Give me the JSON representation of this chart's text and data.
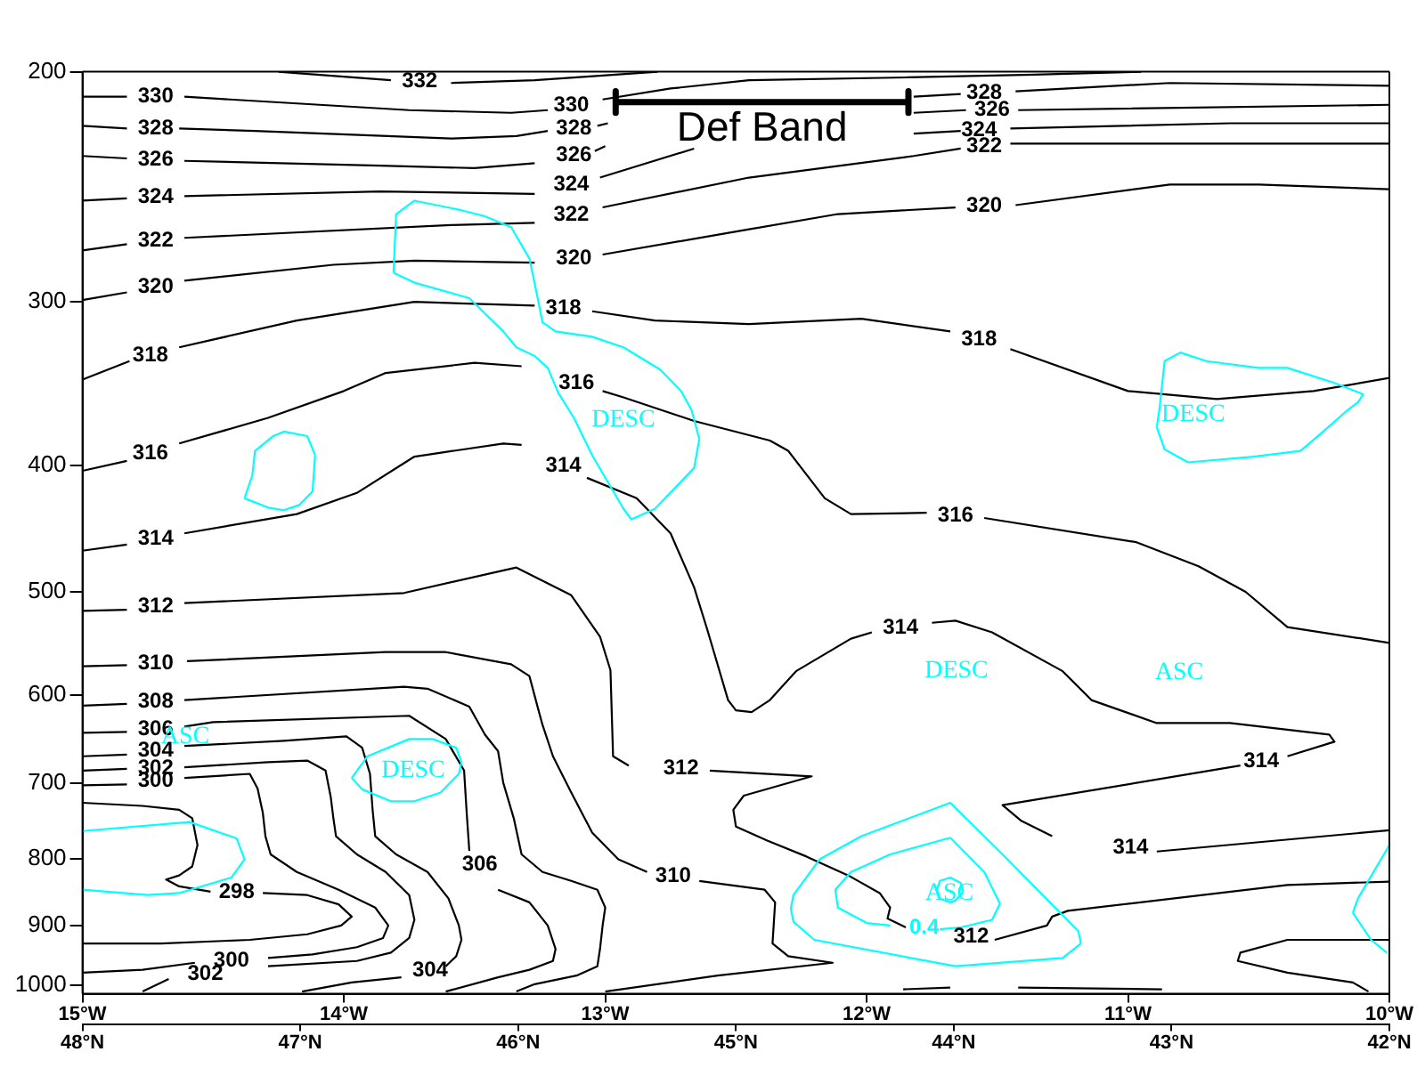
{
  "chart_data": {
    "type": "line",
    "log": "y",
    "xlim": [
      -15,
      -10
    ],
    "xticks": [
      {
        "value": -15,
        "label": "15°W"
      },
      {
        "value": -14,
        "label": "14°W"
      },
      {
        "value": -13,
        "label": "13°W"
      },
      {
        "value": -12,
        "label": "12°W"
      },
      {
        "value": -11,
        "label": "11°W"
      },
      {
        "value": -10,
        "label": "10°W"
      }
    ],
    "x2lim": [
      48,
      42
    ],
    "x2ticks": [
      {
        "value": 48,
        "label": "48°N"
      },
      {
        "value": 47,
        "label": "47°N"
      },
      {
        "value": 46,
        "label": "46°N"
      },
      {
        "value": 45,
        "label": "45°N"
      },
      {
        "value": 44,
        "label": "44°N"
      },
      {
        "value": 43,
        "label": "43°N"
      },
      {
        "value": 42,
        "label": "42°N"
      }
    ],
    "ylim": [
      1015,
      200
    ],
    "yticks": [
      200,
      300,
      400,
      500,
      600,
      700,
      800,
      900,
      1000
    ],
    "series": [
      {
        "name": "332",
        "color": "#000000",
        "x": [
          -14.25,
          -13.82,
          -13.71,
          -13.59,
          -13.27,
          -12.8
        ],
        "values": [
          200,
          203,
          null,
          204,
          203,
          200
        ]
      },
      {
        "name": "330",
        "color": "#000000",
        "x": [
          -15,
          -14.83,
          -14.72,
          -14.61,
          -13.75,
          -13.36,
          -13.22,
          -13.13,
          -13.01,
          -12.75,
          -12.45,
          -11.84,
          -11.36,
          -10.95
        ],
        "values": [
          209,
          209,
          null,
          209,
          214,
          215,
          214,
          null,
          210,
          206,
          203,
          202,
          201,
          200
        ]
      },
      {
        "name": "328",
        "color": "#000000",
        "x": [
          -15,
          -14.83,
          -14.72,
          -14.63,
          -14.34,
          -13.59,
          -13.34,
          -13.22,
          -13.12,
          -13.03,
          -12.99
        ],
        "values": [
          220,
          221,
          null,
          221,
          222,
          225,
          224,
          222,
          null,
          220,
          219
        ]
      },
      {
        "name": "328",
        "color": "#000000",
        "x": [
          -11.82,
          -11.64,
          -11.55,
          -11.43,
          -10.84,
          -10
        ],
        "values": [
          209,
          208,
          null,
          207,
          204,
          205
        ]
      },
      {
        "name": "326",
        "color": "#000000",
        "x": [
          -15,
          -14.83,
          -14.72,
          -14.61,
          -13.86,
          -13.5,
          -13.27,
          -13.12,
          -13.04,
          -13.0
        ],
        "values": [
          232,
          233,
          null,
          234,
          236,
          237,
          235,
          null,
          230,
          228
        ]
      },
      {
        "name": "326",
        "color": "#000000",
        "x": [
          -11.82,
          -11.62,
          -11.52,
          -11.42,
          -10
        ],
        "values": [
          215,
          214,
          null,
          214,
          212
        ]
      },
      {
        "name": "324",
        "color": "#000000",
        "x": [
          -15,
          -14.83,
          -14.72,
          -14.61,
          -13.86,
          -13.27,
          -13.13,
          -13.02,
          -12.66
        ],
        "values": [
          251,
          250,
          null,
          249,
          247,
          248,
          null,
          241,
          229
        ]
      },
      {
        "name": "324",
        "color": "#000000",
        "x": [
          -11.82,
          -11.64,
          -11.57,
          -11.45,
          -10.61,
          -10
        ],
        "values": [
          223,
          222,
          null,
          221,
          219,
          219
        ]
      },
      {
        "name": "322",
        "color": "#000000",
        "x": [
          -15,
          -14.83,
          -14.72,
          -14.61,
          -13.59,
          -13.27,
          -13.13,
          -13.01,
          -12.45,
          -11.82,
          -11.64,
          -11.55,
          -11.45,
          -10
        ],
        "values": [
          274,
          271,
          null,
          268,
          262,
          261,
          null,
          254,
          241,
          232,
          229,
          null,
          227,
          227
        ]
      },
      {
        "name": "320",
        "color": "#000000",
        "x": [
          -15,
          -14.83,
          -14.72,
          -14.61,
          -14.04,
          -13.73,
          -13.27,
          -13.12,
          -13.01,
          -12.45,
          -12.11,
          -11.66,
          -11.55,
          -11.43,
          -10.84,
          -10.5,
          -10
        ],
        "values": [
          299,
          295,
          null,
          289,
          281,
          279,
          280,
          null,
          276,
          264,
          257,
          254,
          null,
          253,
          244,
          244,
          246
        ]
      },
      {
        "name": "318",
        "color": "#000000",
        "x": [
          -15,
          -14.82,
          -14.74,
          -14.63,
          -14.18,
          -13.73,
          -13.27,
          -13.16,
          -13.05,
          -12.81,
          -12.45,
          -12.02,
          -11.68,
          -11.57,
          -11.45,
          -11.0,
          -10.66,
          -10.29,
          -10
        ],
        "values": [
          344,
          333,
          null,
          325,
          310,
          300,
          302,
          null,
          305,
          310,
          312,
          309,
          316,
          null,
          326,
          351,
          356,
          351,
          343
        ]
      },
      {
        "name": "316",
        "color": "#000000",
        "x": [
          -15,
          -14.83,
          -14.74,
          -14.63,
          -14.29,
          -14.0,
          -13.84,
          -13.5,
          -13.32,
          -13.11,
          -13.01,
          -12.93,
          -12.66,
          -12.37,
          -12.3,
          -12.16,
          -12.06,
          -11.77,
          -11.66,
          -11.55,
          -10.97,
          -10.73,
          -10.55,
          -10.39,
          -10
        ],
        "values": [
          404,
          397,
          null,
          385,
          368,
          351,
          340,
          334,
          336,
          null,
          351,
          355,
          370,
          383,
          390,
          424,
          436,
          435,
          null,
          439,
          458,
          478,
          500,
          532,
          547
        ]
      },
      {
        "name": "314",
        "color": "#000000",
        "x": [
          -15,
          -14.83,
          -14.72,
          -14.61,
          -14.18,
          -13.95,
          -13.73,
          -13.39,
          -13.32,
          -13.16,
          -13.07,
          -12.88,
          -12.75,
          -12.66,
          -12.61,
          -12.53,
          -12.5,
          -12.44,
          -12.37,
          -12.27,
          -12.06,
          -11.98,
          -11.87,
          -11.75,
          -11.66,
          -11.52,
          -11.25,
          -11.14,
          -10.89,
          -10.61,
          -10.23,
          -10.21,
          -10.39,
          -10.49,
          -10.57,
          -11.48,
          -11.41,
          -11.29,
          -10.99,
          -10.89,
          -10
        ],
        "values": [
          465,
          460,
          null,
          451,
          436,
          420,
          394,
          385,
          386,
          null,
          409,
          424,
          451,
          496,
          534,
          605,
          616,
          618,
          605,
          575,
          543,
          537,
          null,
          528,
          526,
          537,
          575,
          605,
          630,
          630,
          643,
          651,
          668,
          null,
          679,
          728,
          748,
          769,
          null,
          790,
          761
        ]
      },
      {
        "name": "312",
        "color": "#000000",
        "x": [
          -15,
          -14.83,
          -14.72,
          -14.61,
          -13.77,
          -13.34,
          -13.13,
          -13.02,
          -12.98,
          -12.97,
          -12.91,
          -12.71,
          -12.6,
          -12.21,
          -12.47,
          -12.51,
          -12.5,
          -12.38,
          -12.23,
          -12.07,
          -11.95,
          -11.91,
          -11.92,
          -11.85,
          -11.6,
          -11.51,
          -11.31,
          -11.29,
          -11.23,
          -10.39,
          -10
        ],
        "values": [
          517,
          516,
          null,
          510,
          501,
          479,
          503,
          541,
          574,
          668,
          679,
          null,
          685,
          692,
          716,
          734,
          756,
          775,
          797,
          824,
          850,
          872,
          889,
          903,
          null,
          923,
          900,
          886,
          877,
          838,
          833
        ]
      },
      {
        "name": "310",
        "color": "#000000",
        "x": [
          -15,
          -14.83,
          -14.72,
          -14.6,
          -13.84,
          -13.61,
          -13.36,
          -13.29,
          -13.26,
          -13.24,
          -13.2,
          -13.13,
          -13.05,
          -12.95,
          -12.84,
          -12.74,
          -12.64,
          -12.39,
          -12.35,
          -12.36,
          -12.3,
          -12.13,
          -12.57,
          -13.0
        ],
        "values": [
          570,
          569,
          null,
          565,
          556,
          556,
          568,
          580,
          611,
          632,
          668,
          712,
          764,
          801,
          819,
          null,
          832,
          845,
          864,
          929,
          950,
          961,
          983,
          1011
        ]
      },
      {
        "name": "308",
        "color": "#000000",
        "x": [
          -15,
          -14.83,
          -14.72,
          -14.61,
          -13.77,
          -13.68,
          -13.52,
          -13.46,
          -13.41,
          -13.39,
          -13.35,
          -13.32,
          -13.24,
          -13.13,
          -13.03,
          -13.0,
          -13.01,
          -13.02,
          -13.03,
          -13.11,
          -13.27,
          -13.34
        ],
        "values": [
          611,
          609,
          null,
          605,
          591,
          593,
          612,
          643,
          662,
          700,
          745,
          794,
          819,
          832,
          845,
          872,
          900,
          938,
          967,
          983,
          998,
          1011
        ]
      },
      {
        "name": "306",
        "color": "#000000",
        "x": [
          -15,
          -14.83,
          -14.72,
          -14.61,
          -14.5,
          -13.75,
          -13.61,
          -13.54,
          -13.53,
          -13.52,
          -13.48,
          -13.41,
          -13.29,
          -13.22,
          -13.19,
          -13.2,
          -13.29,
          -13.41,
          -13.61
        ],
        "values": [
          641,
          640,
          null,
          634,
          629,
          622,
          648,
          685,
          738,
          789,
          null,
          845,
          864,
          900,
          938,
          958,
          973,
          986,
          1011
        ]
      },
      {
        "name": "304",
        "color": "#000000",
        "x": [
          -15,
          -14.83,
          -14.72,
          -14.61,
          -14.23,
          -13.99,
          -13.93,
          -13.9,
          -13.89,
          -13.88,
          -13.8,
          -13.68,
          -13.6,
          -13.56,
          -13.55,
          -13.57,
          -13.61,
          -13.67,
          -13.78,
          -13.97,
          -14.16
        ],
        "values": [
          668,
          666,
          null,
          656,
          650,
          645,
          658,
          689,
          734,
          769,
          794,
          819,
          858,
          900,
          923,
          950,
          967,
          null,
          986,
          995,
          1011
        ]
      },
      {
        "name": "302",
        "color": "#000000",
        "x": [
          -15,
          -14.83,
          -14.72,
          -14.61,
          -14.29,
          -14.14,
          -14.07,
          -14.05,
          -14.04,
          -14.03,
          -13.95,
          -13.84,
          -13.75,
          -13.73,
          -13.75,
          -13.82,
          -13.95,
          -14.29,
          -14.53,
          -14.67,
          -14.77
        ],
        "values": [
          685,
          683,
          null,
          681,
          675,
          673,
          685,
          718,
          745,
          769,
          794,
          819,
          853,
          891,
          920,
          944,
          958,
          967,
          null,
          989,
          1011
        ]
      },
      {
        "name": "300",
        "color": "#000000",
        "x": [
          -15,
          -14.83,
          -14.72,
          -14.61,
          -14.36,
          -14.33,
          -14.31,
          -14.3,
          -14.28,
          -14.18,
          -14.02,
          -13.88,
          -13.83,
          -13.85,
          -13.95,
          -14.12,
          -14.29,
          -14.43,
          -14.57,
          -14.77,
          -15
        ],
        "values": [
          703,
          702,
          null,
          694,
          689,
          707,
          738,
          769,
          794,
          819,
          845,
          872,
          900,
          920,
          935,
          947,
          953,
          null,
          961,
          973,
          978
        ]
      },
      {
        "name": "298",
        "color": "#000000",
        "x": [
          -15,
          -14.77,
          -14.63,
          -14.58,
          -14.56,
          -14.58,
          -14.63,
          -14.68,
          -14.63,
          -14.51,
          -14.41,
          -14.31,
          -14.14,
          -14.02,
          -13.97,
          -14.01,
          -14.14,
          -14.36,
          -14.7,
          -15
        ],
        "values": [
          725,
          729,
          734,
          745,
          781,
          811,
          824,
          830,
          840,
          848,
          null,
          850,
          853,
          867,
          886,
          900,
          914,
          923,
          929,
          929
        ]
      },
      {
        "color": "#000000",
        "x": [
          -10,
          -10.39,
          -10.57,
          -10.58,
          -10.39,
          -10.14,
          -10.08
        ],
        "values": [
          923,
          923,
          944,
          958,
          978,
          995,
          1011
        ]
      },
      {
        "color": "#000000",
        "x": [
          -11.86,
          -11.68
        ],
        "values": [
          1007,
          1004
        ]
      },
      {
        "color": "#000000",
        "x": [
          -11.42,
          -10.87
        ],
        "values": [
          1004,
          1007
        ]
      },
      {
        "color": "#00ffff",
        "x": [
          -13.81,
          -13.8,
          -13.73,
          -13.56,
          -13.46,
          -13.36,
          -13.29,
          -13.26,
          -13.24,
          -13.19,
          -13.05,
          -12.93,
          -12.79,
          -12.71,
          -12.67,
          -12.64
        ],
        "values": [
          285,
          257,
          251,
          255,
          258,
          263,
          278,
          297,
          311,
          316,
          319,
          325,
          338,
          351,
          363,
          382
        ]
      },
      {
        "color": "#00ffff",
        "x": [
          -13.81,
          -13.73,
          -13.52,
          -13.39,
          -13.34,
          -13.27,
          -13.22,
          -13.18,
          -13.12,
          -13.05,
          -12.93,
          -12.9,
          -12.81,
          -12.66,
          -12.64
        ],
        "values": [
          285,
          290,
          298,
          316,
          325,
          330,
          337,
          352,
          368,
          393,
          432,
          440,
          432,
          402,
          382
        ]
      },
      {
        "color": "#00ffff",
        "x": [
          -14.38,
          -14.35,
          -14.34,
          -14.27,
          -14.23,
          -14.14,
          -14.11
        ],
        "values": [
          424,
          407,
          390,
          380,
          377,
          380,
          393
        ]
      },
      {
        "color": "#00ffff",
        "x": [
          -14.38,
          -14.29,
          -14.23,
          -14.17,
          -14.12,
          -14.11
        ],
        "values": [
          424,
          431,
          433,
          429,
          419,
          393
        ]
      },
      {
        "color": "#00ffff",
        "x": [
          -10.89,
          -10.88,
          -10.86,
          -10.8,
          -10.7,
          -10.5,
          -10.39,
          -10.21,
          -10.1
        ],
        "values": [
          374,
          363,
          333,
          328,
          333,
          337,
          337,
          346,
          353
        ]
      },
      {
        "color": "#00ffff",
        "x": [
          -10.89,
          -10.86,
          -10.77,
          -10.52,
          -10.34,
          -10.26,
          -10.16,
          -10.12,
          -10.1
        ],
        "values": [
          374,
          389,
          398,
          394,
          390,
          378,
          363,
          358,
          353
        ]
      },
      {
        "color": "#00ffff",
        "x": [
          -15,
          -14.59,
          -14.41,
          -14.38,
          -14.43,
          -14.63,
          -14.75,
          -15
        ],
        "values": [
          762,
          750,
          772,
          801,
          827,
          850,
          853,
          845
        ]
      },
      {
        "color": "#00ffff",
        "x": [
          -13.97,
          -13.91,
          -13.75,
          -13.66,
          -13.57,
          -13.55
        ],
        "values": [
          694,
          668,
          648,
          648,
          658,
          675
        ]
      },
      {
        "color": "#00ffff",
        "x": [
          -13.97,
          -13.93,
          -13.82,
          -13.73,
          -13.63,
          -13.56,
          -13.55
        ],
        "values": [
          694,
          708,
          723,
          723,
          712,
          689,
          675
        ]
      },
      {
        "color": "#00ffff",
        "x": [
          -12.29,
          -12.28,
          -12.18,
          -12.02,
          -11.68,
          -11.48,
          -11.19,
          -11.18
        ],
        "values": [
          874,
          853,
          801,
          769,
          725,
          794,
          909,
          929
        ]
      },
      {
        "color": "#00ffff",
        "x": [
          -12.29,
          -12.28,
          -12.2,
          -11.66,
          -11.25,
          -11.18
        ],
        "values": [
          874,
          894,
          923,
          967,
          953,
          929
        ]
      },
      {
        "name": "0.4",
        "color": "#00ffff",
        "x": [
          -11.68,
          -11.55,
          -11.49,
          -11.52,
          -11.64,
          -11.72,
          -11.78,
          -11.91,
          -12.0,
          -12.11,
          -12.12,
          -12.06,
          -11.91,
          -11.68
        ],
        "values": [
          771,
          819,
          866,
          891,
          903,
          906,
          null,
          900,
          896,
          872,
          845,
          819,
          794,
          771
        ]
      },
      {
        "color": "#00ffff",
        "x": [
          -11.73,
          -11.72,
          -11.68,
          -11.64,
          -11.63
        ],
        "values": [
          845,
          832,
          827,
          835,
          848
        ]
      },
      {
        "color": "#00ffff",
        "x": [
          -11.73,
          -11.72,
          -11.68,
          -11.66,
          -11.63
        ],
        "values": [
          845,
          858,
          864,
          861,
          848
        ]
      },
      {
        "color": "#00ffff",
        "x": [
          -10.14,
          -10.12,
          -10
        ],
        "values": [
          880,
          858,
          781
        ]
      },
      {
        "color": "#00ffff",
        "x": [
          -10.14,
          -10.07,
          -10.01
        ],
        "values": [
          880,
          923,
          944
        ]
      },
      {
        "name": "Def Band",
        "color": "#000000",
        "x": [
          -12.96,
          -12.96,
          -12.96,
          -11.84,
          -11.84,
          -11.84
        ],
        "values": [
          207,
          215,
          211,
          211,
          207,
          215
        ]
      }
    ],
    "annotations": [
      "DESC",
      "DESC",
      "DESC",
      "ASC",
      "ASC",
      "DESC",
      "ASC"
    ]
  }
}
